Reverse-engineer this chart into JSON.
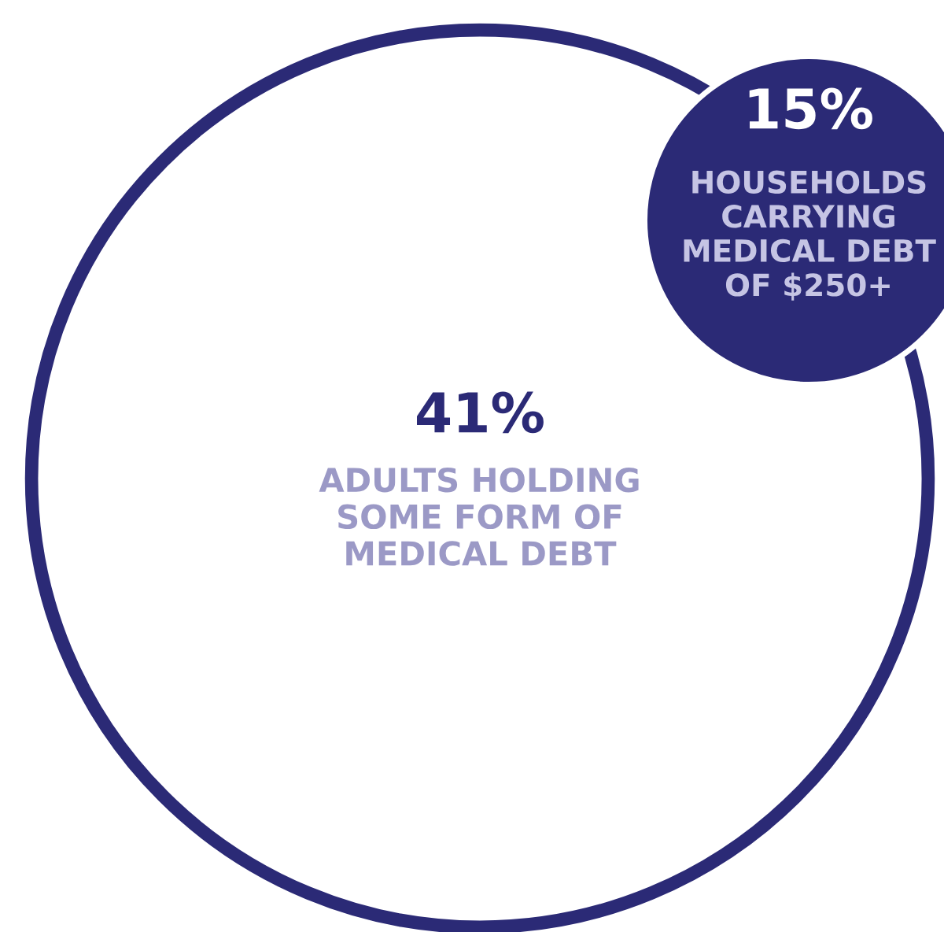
{
  "chart_data": {
    "type": "other",
    "categories": [
      "ADULTS HOLDING\nSOME FORM OF\nMEDICAL DEBT",
      "HOUSEHOLDS\nCARRYING\nMEDICAL DEBT\nOF $250+"
    ],
    "values": [
      41,
      15
    ],
    "value_labels": [
      "41%",
      "15%"
    ],
    "colors": [
      "#2b2a76",
      "#2b2a76"
    ]
  }
}
